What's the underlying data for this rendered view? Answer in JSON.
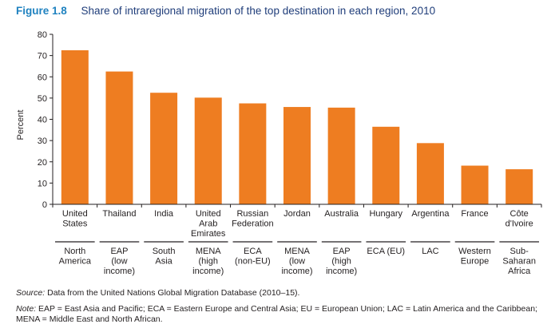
{
  "figure": {
    "label": "Figure 1.8",
    "caption": "Share of intraregional migration of the top destination in each region, 2010"
  },
  "colors": {
    "bar": "#ee7d21",
    "axis": "#231f20",
    "title_label": "#1f82c0",
    "title_text": "#1f3d7a"
  },
  "chart_data": {
    "type": "bar",
    "title": "Share of intraregional migration of the top destination in each region, 2010",
    "xlabel": "",
    "ylabel": "Percent",
    "ylim": [
      0,
      80
    ],
    "yticks": [
      0,
      10,
      20,
      30,
      40,
      50,
      60,
      70,
      80
    ],
    "grid": false,
    "categories": [
      [
        "United",
        "States"
      ],
      [
        "Thailand"
      ],
      [
        "India"
      ],
      [
        "United",
        "Arab",
        "Emirates"
      ],
      [
        "Russian",
        "Federation"
      ],
      [
        "Jordan"
      ],
      [
        "Australia"
      ],
      [
        "Hungary"
      ],
      [
        "Argentina"
      ],
      [
        "France"
      ],
      [
        "Côte",
        "d'Ivoire"
      ]
    ],
    "regions": [
      [
        "North",
        "America"
      ],
      [
        "EAP",
        "(low",
        "income)"
      ],
      [
        "South",
        "Asia"
      ],
      [
        "MENA",
        "(high",
        "income)"
      ],
      [
        "ECA",
        "(non-EU)"
      ],
      [
        "MENA",
        "(low",
        "income)"
      ],
      [
        "EAP",
        "(high",
        "income)"
      ],
      [
        "ECA (EU)"
      ],
      [
        "LAC"
      ],
      [
        "Western",
        "Europe"
      ],
      [
        "Sub-",
        "Saharan",
        "Africa"
      ]
    ],
    "values": [
      72.5,
      62.5,
      52.5,
      50.2,
      47.5,
      45.8,
      45.5,
      36.5,
      28.8,
      18.2,
      16.5
    ]
  },
  "notes": {
    "source_label": "Source:",
    "source_text": " Data from the United Nations Global Migration Database (2010–15).",
    "note_label": "Note:",
    "note_line1": " EAP = East Asia and Pacific; ECA = Eastern Europe and Central Asia; EU = European Union; LAC = Latin America and the Caribbean;",
    "note_line2": "MENA = Middle East and North African."
  }
}
